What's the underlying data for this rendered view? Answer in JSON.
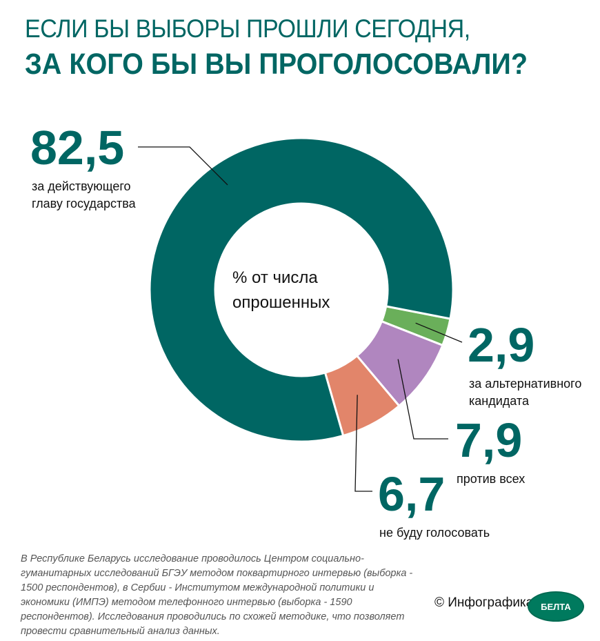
{
  "title_line1": "ЕСЛИ БЫ ВЫБОРЫ ПРОШЛИ СЕГОДНЯ,",
  "title_line2": "ЗА КОГО БЫ ВЫ ПРОГОЛОСОВАЛИ?",
  "chart_data": {
    "type": "pie",
    "donut": true,
    "center_label_line1": "% от числа",
    "center_label_line2": "опрошенных",
    "slices": [
      {
        "value": 2.9,
        "value_label": "2,9",
        "label_line1": "за альтернативного",
        "label_line2": "кандидата",
        "color": "#6aaf5a"
      },
      {
        "value": 7.9,
        "value_label": "7,9",
        "label_line1": "против всех",
        "label_line2": "",
        "color": "#b086bf"
      },
      {
        "value": 6.7,
        "value_label": "6,7",
        "label_line1": "не буду голосовать",
        "label_line2": "",
        "color": "#e2856a"
      },
      {
        "value": 82.5,
        "value_label": "82,5",
        "label_line1": "за действующего",
        "label_line2": "главу государства",
        "color": "#006663"
      }
    ]
  },
  "footnote": "В Республике Беларусь исследование проводилось Центром социально-гуманитарных исследований БГЭУ методом поквартирного интервью (выборка - 1500 респондентов), в Сербии - Институтом международной политики и экономики (ИМПЭ) методом телефонного интервью (выборка - 1590 респондентов). Исследования проводились по схожей методике, что позволяет провести сравнительный анализ данных.",
  "credit": "© Инфографика",
  "logo_text": "БЕЛТА"
}
